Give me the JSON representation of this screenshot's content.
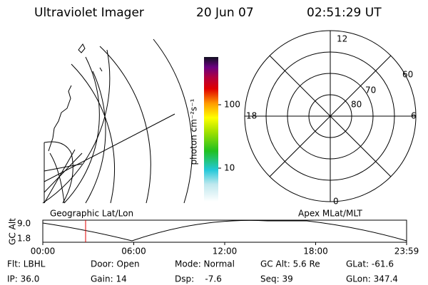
{
  "header": {
    "title": "Ultraviolet Imager",
    "date": "20 Jun 07",
    "time": "02:51:29 UT"
  },
  "map": {
    "caption": "Geographic Lat/Lon"
  },
  "colorbar": {
    "label": "photon cm⁻²s⁻¹",
    "ticks": [
      "100",
      "10"
    ]
  },
  "polar": {
    "caption": "Apex MLat/MLT",
    "mlt_labels": [
      "12",
      "6",
      "0",
      "18"
    ],
    "lat_labels": [
      "60",
      "70",
      "80"
    ]
  },
  "timeline": {
    "ylabel": "GC Alt",
    "yticks": [
      "9.0",
      "1.8"
    ],
    "xticks": [
      "00:00",
      "06:00",
      "12:00",
      "18:00",
      "23:59"
    ]
  },
  "info": [
    [
      "Flt: LBHL",
      "Door: Open",
      "Mode: Normal",
      "GC Alt: 5.6 Re",
      "GLat: -61.6"
    ],
    [
      "IP: 36.0",
      "Gain: 14",
      "Dsp:    -7.6",
      "Seq: 39",
      "GLon: 347.4"
    ]
  ]
}
